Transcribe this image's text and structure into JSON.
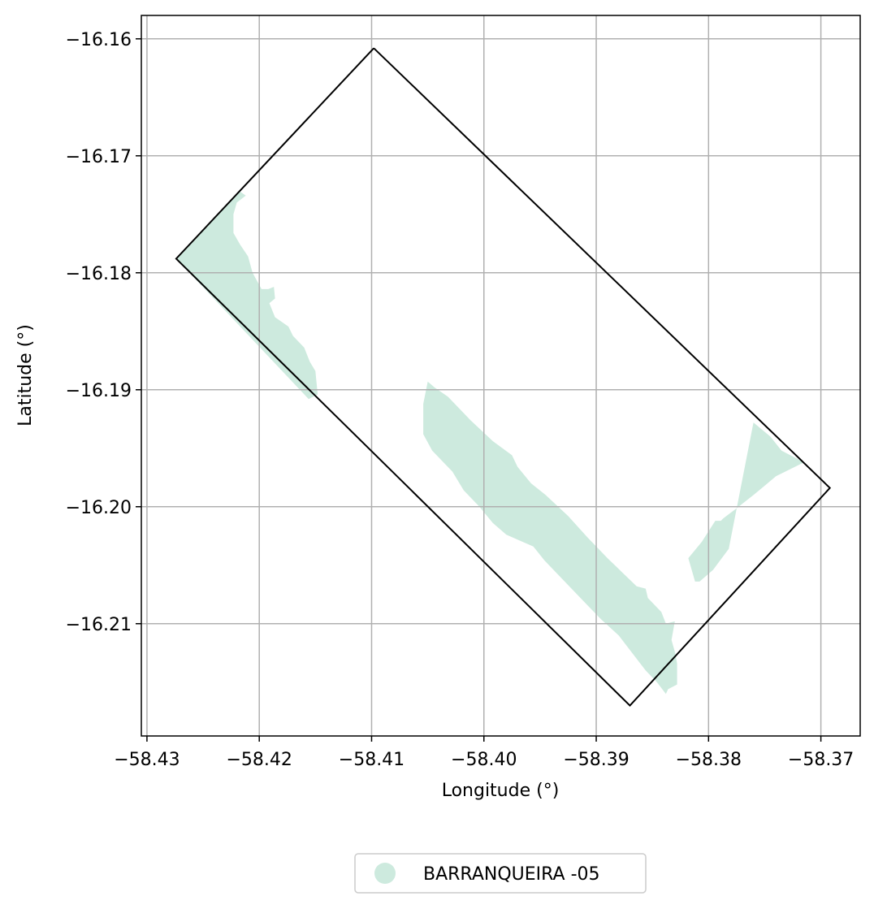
{
  "chart_data": {
    "type": "map",
    "xlabel": "Longitude (°)",
    "ylabel": "Latitude (°)",
    "xlim": [
      -58.4305,
      -58.3665
    ],
    "ylim": [
      -16.2196,
      -16.158
    ],
    "x_ticks": [
      -58.43,
      -58.42,
      -58.41,
      -58.4,
      -58.39,
      -58.38,
      -58.37
    ],
    "x_tick_labels": [
      "−58.43",
      "−58.42",
      "−58.41",
      "−58.40",
      "−58.39",
      "−58.38",
      "−58.37"
    ],
    "y_ticks": [
      -16.16,
      -16.17,
      -16.18,
      -16.19,
      -16.2,
      -16.21
    ],
    "y_tick_labels": [
      "−16.16",
      "−16.17",
      "−16.18",
      "−16.19",
      "−16.20",
      "−16.21"
    ],
    "grid": true,
    "boundary_color": "#000000",
    "boundary": [
      [
        -58.4098,
        -16.1608
      ],
      [
        -58.3692,
        -16.1984
      ],
      [
        -58.387,
        -16.217
      ],
      [
        -58.4274,
        -16.1788
      ],
      [
        -58.4098,
        -16.1608
      ]
    ],
    "series": [
      {
        "name": "BARRANQUEIRA -05",
        "color": "#cdeade",
        "polygons": [
          [
            [
              -58.4274,
              -16.1788
            ],
            [
              -58.4218,
              -16.173
            ],
            [
              -58.4212,
              -16.1734
            ],
            [
              -58.422,
              -16.174
            ],
            [
              -58.4223,
              -16.175
            ],
            [
              -58.4223,
              -16.1766
            ],
            [
              -58.4217,
              -16.1776
            ],
            [
              -58.421,
              -16.1786
            ],
            [
              -58.4206,
              -16.18
            ],
            [
              -58.4198,
              -16.1814
            ],
            [
              -58.4192,
              -16.1814
            ],
            [
              -58.4187,
              -16.1812
            ],
            [
              -58.4186,
              -16.1822
            ],
            [
              -58.4191,
              -16.1826
            ],
            [
              -58.4186,
              -16.1838
            ],
            [
              -58.4174,
              -16.1846
            ],
            [
              -58.417,
              -16.1854
            ],
            [
              -58.416,
              -16.1864
            ],
            [
              -58.4155,
              -16.1876
            ],
            [
              -58.415,
              -16.1884
            ],
            [
              -58.4148,
              -16.1904
            ],
            [
              -58.4156,
              -16.1908
            ]
          ],
          [
            [
              -58.405,
              -16.1893
            ],
            [
              -58.4044,
              -16.1898
            ],
            [
              -58.4032,
              -16.1906
            ],
            [
              -58.4012,
              -16.1926
            ],
            [
              -58.3992,
              -16.1944
            ],
            [
              -58.3975,
              -16.1956
            ],
            [
              -58.397,
              -16.1966
            ],
            [
              -58.3958,
              -16.198
            ],
            [
              -58.3945,
              -16.199
            ],
            [
              -58.3925,
              -16.2008
            ],
            [
              -58.3908,
              -16.2026
            ],
            [
              -58.389,
              -16.2044
            ],
            [
              -58.3864,
              -16.2068
            ],
            [
              -58.3856,
              -16.207
            ],
            [
              -58.3854,
              -16.2078
            ],
            [
              -58.3842,
              -16.209
            ],
            [
              -58.3838,
              -16.21
            ],
            [
              -58.383,
              -16.2098
            ],
            [
              -58.3833,
              -16.2114
            ],
            [
              -58.383,
              -16.2124
            ],
            [
              -58.3828,
              -16.2134
            ],
            [
              -58.3828,
              -16.2152
            ],
            [
              -58.3836,
              -16.2156
            ],
            [
              -58.3838,
              -16.216
            ],
            [
              -58.3846,
              -16.215
            ],
            [
              -58.3856,
              -16.214
            ],
            [
              -58.3864,
              -16.213
            ],
            [
              -58.388,
              -16.211
            ],
            [
              -58.3896,
              -16.2096
            ],
            [
              -58.3912,
              -16.208
            ],
            [
              -58.3932,
              -16.206
            ],
            [
              -58.3946,
              -16.2046
            ],
            [
              -58.3956,
              -16.2034
            ],
            [
              -58.398,
              -16.2024
            ],
            [
              -58.3992,
              -16.2014
            ],
            [
              -58.4004,
              -16.2
            ],
            [
              -58.4018,
              -16.1986
            ],
            [
              -58.4028,
              -16.197
            ],
            [
              -58.4046,
              -16.1952
            ],
            [
              -58.4054,
              -16.1938
            ],
            [
              -58.4054,
              -16.1912
            ]
          ],
          [
            [
              -58.3782,
              -16.2036
            ],
            [
              -58.3796,
              -16.2054
            ],
            [
              -58.3808,
              -16.2064
            ],
            [
              -58.3812,
              -16.2064
            ],
            [
              -58.3818,
              -16.2044
            ],
            [
              -58.3806,
              -16.203
            ],
            [
              -58.3794,
              -16.2012
            ],
            [
              -58.3789,
              -16.2012
            ],
            [
              -58.3787,
              -16.201
            ],
            [
              -58.3776,
              -16.2002
            ],
            [
              -58.376,
              -16.199
            ],
            [
              -58.375,
              -16.1982
            ],
            [
              -58.374,
              -16.1974
            ],
            [
              -58.3715,
              -16.1962
            ],
            [
              -58.3735,
              -16.1952
            ],
            [
              -58.3745,
              -16.194
            ],
            [
              -58.376,
              -16.1928
            ]
          ]
        ]
      }
    ],
    "legend_position": "bottom-center",
    "legend_labels": [
      "BARRANQUEIRA -05"
    ]
  }
}
